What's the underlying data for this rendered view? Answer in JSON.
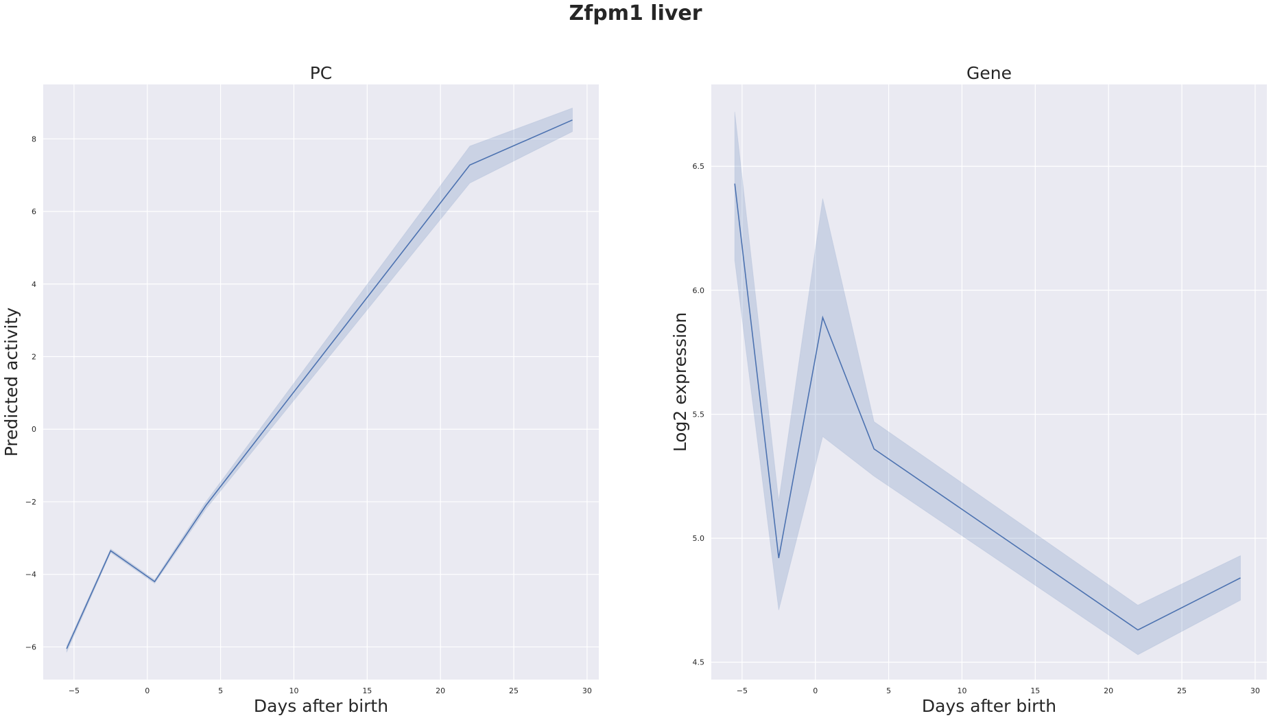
{
  "figure": {
    "title": "Zfpm1 liver"
  },
  "colors": {
    "line": "#4c72b0",
    "band": "#4c72b0",
    "plot_bg": "#eaeaf2",
    "grid": "#ffffff",
    "text": "#262626"
  },
  "chart_data": [
    {
      "type": "line",
      "title": "PC",
      "xlabel": "Days after birth",
      "ylabel": "Predicted activity",
      "xlim": [
        -7.1,
        30.8
      ],
      "ylim": [
        -6.9,
        9.5
      ],
      "xticks": [
        -5,
        0,
        5,
        10,
        15,
        20,
        25,
        30
      ],
      "xtick_labels": [
        "−5",
        "0",
        "5",
        "10",
        "15",
        "20",
        "25",
        "30"
      ],
      "yticks": [
        -6,
        -4,
        -2,
        0,
        2,
        4,
        6,
        8
      ],
      "ytick_labels": [
        "−6",
        "−4",
        "−2",
        "0",
        "2",
        "4",
        "6",
        "8"
      ],
      "grid": true,
      "x": [
        -5.5,
        -2.5,
        0.5,
        4,
        22,
        29
      ],
      "y": [
        -6.05,
        -3.35,
        -4.2,
        -2.1,
        7.28,
        8.52
      ],
      "ci_low": [
        -6.15,
        -3.4,
        -4.25,
        -2.2,
        6.78,
        8.2
      ],
      "ci_high": [
        -5.98,
        -3.3,
        -4.15,
        -2.0,
        7.8,
        8.85
      ]
    },
    {
      "type": "line",
      "title": "Gene",
      "xlabel": "Days after birth",
      "ylabel": "Log2 expression",
      "xlim": [
        -7.1,
        30.8
      ],
      "ylim": [
        4.43,
        6.83
      ],
      "xticks": [
        -5,
        0,
        5,
        10,
        15,
        20,
        25,
        30
      ],
      "xtick_labels": [
        "−5",
        "0",
        "5",
        "10",
        "15",
        "20",
        "25",
        "30"
      ],
      "yticks": [
        4.5,
        5.0,
        5.5,
        6.0,
        6.5
      ],
      "ytick_labels": [
        "4.5",
        "5.0",
        "5.5",
        "6.0",
        "6.5"
      ],
      "grid": true,
      "x": [
        -5.5,
        -2.5,
        0.5,
        4,
        22,
        29
      ],
      "y": [
        6.43,
        4.92,
        5.89,
        5.36,
        4.63,
        4.84
      ],
      "ci_low": [
        6.12,
        4.71,
        5.41,
        5.25,
        4.53,
        4.75
      ],
      "ci_high": [
        6.72,
        5.15,
        6.37,
        5.47,
        4.73,
        4.93
      ]
    }
  ]
}
